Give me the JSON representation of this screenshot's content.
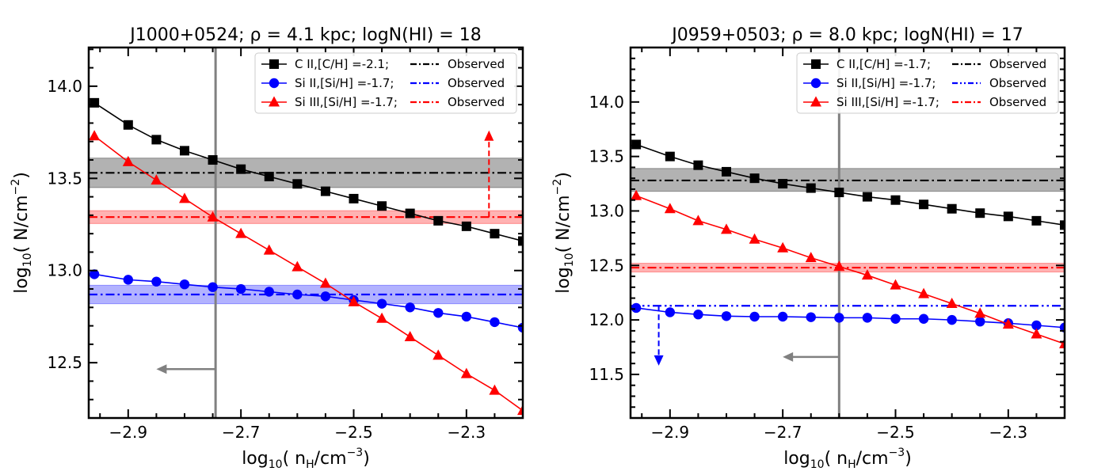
{
  "chart_data": [
    {
      "type": "line",
      "title": "J1000+0524;  ρ =  4.1 kpc; logN(HI) = 18",
      "xlabel": {
        "pre": "log",
        "sub": "10",
        "mid": "( n",
        "sub2": "H",
        "post": "/cm",
        "sup": "−3",
        "end": ")"
      },
      "ylabel": {
        "pre": "log",
        "sub": "10",
        "mid": "( N/cm",
        "sup": "−2",
        "end": ")"
      },
      "xlim": [
        -2.97,
        -2.2
      ],
      "ylim": [
        12.2,
        14.21
      ],
      "xticks": [
        -2.9,
        -2.7,
        -2.5,
        -2.3
      ],
      "xtick_labels": [
        "−2.9",
        "−2.7",
        "−2.5",
        "−2.3"
      ],
      "yticks": [
        12.5,
        13.0,
        13.5,
        14.0
      ],
      "ytick_labels": [
        "12.5",
        "13.0",
        "13.5",
        "14.0"
      ],
      "x": [
        -2.96,
        -2.9,
        -2.85,
        -2.8,
        -2.75,
        -2.7,
        -2.65,
        -2.6,
        -2.55,
        -2.5,
        -2.45,
        -2.4,
        -2.35,
        -2.3,
        -2.25,
        -2.2
      ],
      "series": [
        {
          "name": "C II,[C/H] =-2.1;",
          "color": "#000000",
          "marker": "square",
          "values": [
            13.91,
            13.79,
            13.71,
            13.65,
            13.6,
            13.55,
            13.51,
            13.47,
            13.43,
            13.39,
            13.35,
            13.31,
            13.27,
            13.24,
            13.2,
            13.16
          ]
        },
        {
          "name": "Si II,[Si/H] =-1.7;",
          "color": "#0000ff",
          "marker": "circle",
          "values": [
            12.98,
            12.95,
            12.94,
            12.925,
            12.91,
            12.9,
            12.885,
            12.87,
            12.86,
            12.84,
            12.82,
            12.8,
            12.77,
            12.75,
            12.72,
            12.69
          ]
        },
        {
          "name": "Si III,[Si/H] =-1.7;",
          "color": "#ff0000",
          "marker": "triangle",
          "values": [
            13.73,
            13.59,
            13.49,
            13.39,
            13.29,
            13.2,
            13.11,
            13.02,
            12.93,
            12.83,
            12.74,
            12.64,
            12.54,
            12.44,
            12.35,
            12.24
          ]
        }
      ],
      "observed": [
        {
          "name": "Observed",
          "color": "#000000",
          "value": 13.53,
          "band": [
            13.45,
            13.61
          ]
        },
        {
          "name": "Observed",
          "color": "#0000ff",
          "value": 12.87,
          "band": [
            12.82,
            12.92
          ]
        },
        {
          "name": "Observed",
          "color": "#ff0000",
          "value": 13.29,
          "band": [
            13.255,
            13.325
          ]
        }
      ],
      "vline_x": -2.745,
      "vline_color": "#808080",
      "limit_arrows": [
        {
          "color": "#ff0000",
          "direction": "up",
          "x": -2.26,
          "from": 13.29,
          "to": 13.76
        },
        {
          "color": "#808080",
          "direction": "left",
          "y": 12.465,
          "from": -2.745,
          "to": -2.85
        }
      ],
      "legend": {
        "placement": "top-right",
        "observed_label": "Observed"
      }
    },
    {
      "type": "line",
      "title": "J0959+0503;  ρ =  8.0 kpc; logN(HI) = 17",
      "xlabel": {
        "pre": "log",
        "sub": "10",
        "mid": "( n",
        "sub2": "H",
        "post": "/cm",
        "sup": "−3",
        "end": ")"
      },
      "ylabel": {
        "pre": "log",
        "sub": "10",
        "mid": "( N/cm",
        "sup": "−2",
        "end": ")"
      },
      "xlim": [
        -2.97,
        -2.2
      ],
      "ylim": [
        11.1,
        14.5
      ],
      "xticks": [
        -2.9,
        -2.7,
        -2.5,
        -2.3
      ],
      "xtick_labels": [
        "−2.9",
        "−2.7",
        "−2.5",
        "−2.3"
      ],
      "yticks": [
        11.5,
        12.0,
        12.5,
        13.0,
        13.5,
        14.0
      ],
      "ytick_labels": [
        "11.5",
        "12.0",
        "12.5",
        "13.0",
        "13.5",
        "14.0"
      ],
      "x": [
        -2.96,
        -2.9,
        -2.85,
        -2.8,
        -2.75,
        -2.7,
        -2.65,
        -2.6,
        -2.55,
        -2.5,
        -2.45,
        -2.4,
        -2.35,
        -2.3,
        -2.25,
        -2.2
      ],
      "series": [
        {
          "name": "C II,[C/H] =-1.7;",
          "color": "#000000",
          "marker": "square",
          "values": [
            13.61,
            13.5,
            13.42,
            13.36,
            13.3,
            13.25,
            13.21,
            13.17,
            13.13,
            13.1,
            13.06,
            13.02,
            12.98,
            12.95,
            12.91,
            12.87
          ]
        },
        {
          "name": "Si II,[Si/H] =-1.7;",
          "color": "#0000ff",
          "marker": "circle",
          "values": [
            12.11,
            12.07,
            12.05,
            12.035,
            12.03,
            12.03,
            12.025,
            12.02,
            12.02,
            12.01,
            12.01,
            12.0,
            11.985,
            11.97,
            11.95,
            11.93
          ]
        },
        {
          "name": "Si III,[Si/H] =-1.7;",
          "color": "#ff0000",
          "marker": "triangle",
          "values": [
            13.14,
            13.02,
            12.91,
            12.83,
            12.74,
            12.66,
            12.57,
            12.49,
            12.41,
            12.32,
            12.24,
            12.15,
            12.06,
            11.96,
            11.87,
            11.78
          ]
        }
      ],
      "observed": [
        {
          "name": "Observed",
          "color": "#000000",
          "value": 13.28,
          "band": [
            13.18,
            13.39
          ]
        },
        {
          "name": "Observed",
          "color": "#ff0000",
          "value": 12.48,
          "band": [
            12.44,
            12.52
          ]
        }
      ],
      "upper_limit": {
        "name": "Observed",
        "color": "#0000ff",
        "value": 12.13
      },
      "vline_x": -2.6,
      "vline_color": "#808080",
      "limit_arrows": [
        {
          "color": "#0000ff",
          "direction": "down",
          "x": -2.92,
          "from": 12.13,
          "to": 11.58
        },
        {
          "color": "#808080",
          "direction": "left",
          "y": 11.66,
          "from": -2.6,
          "to": -2.7
        }
      ],
      "legend": {
        "placement": "top-right",
        "observed_label": "Observed"
      }
    }
  ]
}
